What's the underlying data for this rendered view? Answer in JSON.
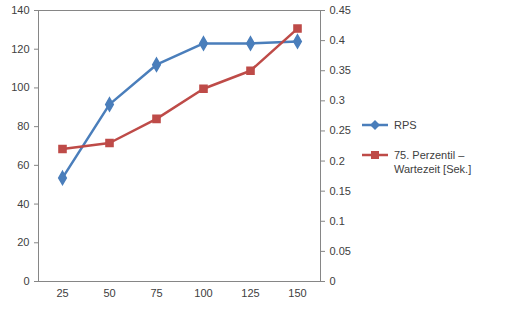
{
  "chart_data": {
    "type": "line",
    "categories": [
      "25",
      "50",
      "75",
      "100",
      "125",
      "150"
    ],
    "series": [
      {
        "name": "RPS",
        "color": "#4a7ebb",
        "marker": "diamond",
        "values": [
          53.5,
          91.5,
          112,
          123,
          123,
          124
        ]
      },
      {
        "name": "75. Perzentil – Wartezeit [Sek.]",
        "color": "#be4b48",
        "marker": "square",
        "axis": "y2",
        "values": [
          0.22,
          0.23,
          0.27,
          0.32,
          0.35,
          0.42
        ]
      }
    ],
    "ylim": [
      0,
      140
    ],
    "yticks": [
      0,
      20,
      40,
      60,
      80,
      100,
      120,
      140
    ],
    "y2lim": [
      0,
      0.45
    ],
    "y2ticks": [
      0,
      0.05,
      0.1,
      0.15,
      0.2,
      0.25,
      0.3,
      0.35,
      0.4,
      0.45
    ],
    "grid": false,
    "legend": "right"
  }
}
